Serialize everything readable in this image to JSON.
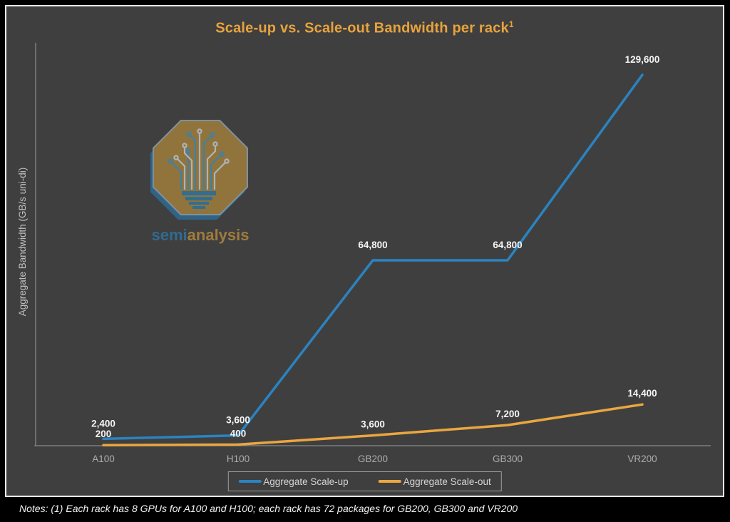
{
  "title": {
    "text": "Scale-up vs. Scale-out Bandwidth per rack",
    "superscript": "1"
  },
  "y_axis_label": "Aggregate Bandwidth (GB/s uni-di)",
  "logo": {
    "wordmark_part1": "semi",
    "wordmark_part2": "analysis"
  },
  "legend": [
    {
      "label": "Aggregate Scale-up",
      "color": "#2B83C0"
    },
    {
      "label": "Aggregate Scale-out",
      "color": "#EAA640"
    }
  ],
  "notes": "Notes: (1) Each rack has 8 GPUs for A100 and H100; each rack has 72 packages for GB200, GB300 and VR200",
  "colors": {
    "background": "#3F3F3F",
    "page_frame": "#000000",
    "panel_border": "#E9E9E9",
    "title_gold": "#E8A33D",
    "axis_line": "#7F7F7F",
    "tick_label": "#ADADAD",
    "data_label": "#F5F5F5",
    "scale_up_blue": "#2B83C0",
    "scale_out_orange": "#EAA640"
  },
  "chart_data": {
    "type": "line",
    "title": "Scale-up vs. Scale-out Bandwidth per rack¹",
    "categories": [
      "A100",
      "H100",
      "GB200",
      "GB300",
      "VR200"
    ],
    "series": [
      {
        "name": "Aggregate Scale-up",
        "color": "#2B83C0",
        "values": [
          2400,
          3600,
          64800,
          64800,
          129600
        ],
        "labels": [
          "2,400",
          "3,600",
          "64,800",
          "64,800",
          "129,600"
        ]
      },
      {
        "name": "Aggregate Scale-out",
        "color": "#EAA640",
        "values": [
          200,
          400,
          3600,
          7200,
          14400
        ],
        "labels": [
          "200",
          "400",
          "3,600",
          "7,200",
          "14,400"
        ]
      }
    ],
    "xlabel": "",
    "ylabel": "Aggregate Bandwidth (GB/s uni-di)",
    "ylim": [
      0,
      129600
    ],
    "grid": false,
    "y_ticks_visible": false,
    "legend_position": "bottom",
    "notes": "Notes: (1) Each rack has 8 GPUs for A100 and H100; each rack has 72 packages for GB200, GB300 and VR200"
  }
}
